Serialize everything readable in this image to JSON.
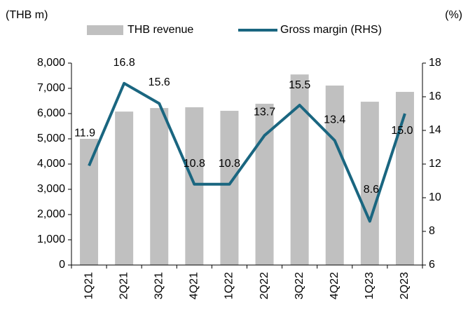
{
  "chart_data": {
    "type": "bar_line",
    "left_axis_label": "(THB m)",
    "right_axis_label": "(%)",
    "categories": [
      "1Q21",
      "2Q21",
      "3Q21",
      "4Q21",
      "1Q22",
      "2Q22",
      "3Q22",
      "4Q22",
      "1Q23",
      "2Q23"
    ],
    "series": [
      {
        "name": "THB revenue",
        "type": "bar",
        "color": "#c0c0c0",
        "values": [
          5000,
          6080,
          6220,
          6250,
          6110,
          6390,
          7550,
          7110,
          6470,
          6860
        ]
      },
      {
        "name": "Gross margin (RHS)",
        "type": "line",
        "axis": "y2",
        "color": "#1a6680",
        "values": [
          11.9,
          16.8,
          15.6,
          10.8,
          10.8,
          13.7,
          15.5,
          13.4,
          8.6,
          15.0
        ],
        "value_labels": [
          "11.9",
          "16.8",
          "15.6",
          "10.8",
          "10.8",
          "13.7",
          "15.5",
          "13.4",
          "8.6",
          "15.0"
        ]
      }
    ],
    "ylim": [
      0,
      8000
    ],
    "yticks": [
      0,
      {
        "value": 1000,
        "label": "1,000"
      },
      {
        "value": 2000,
        "label": "2,000"
      },
      {
        "value": 3000,
        "label": "3,000"
      },
      {
        "value": 4000,
        "label": "4,000"
      },
      {
        "value": 5000,
        "label": "5,000"
      },
      {
        "value": 6000,
        "label": "6,000"
      },
      {
        "value": 7000,
        "label": "7,000"
      },
      {
        "value": 8000,
        "label": "8,000"
      }
    ],
    "y2lim": [
      6,
      18
    ],
    "y2ticks": [
      6,
      8,
      10,
      12,
      14,
      16,
      18
    ]
  }
}
